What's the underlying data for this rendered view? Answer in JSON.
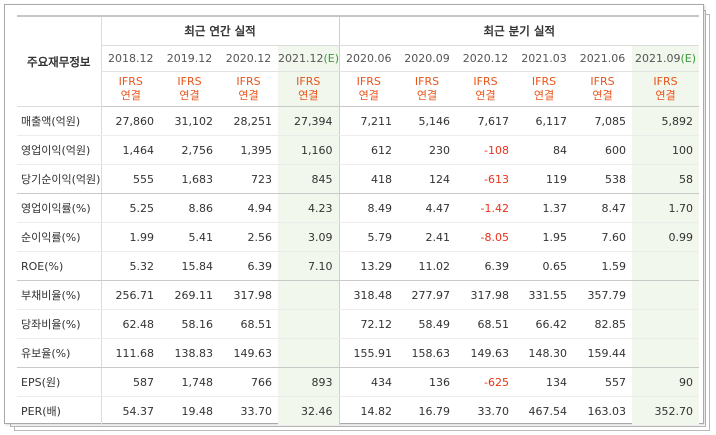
{
  "table": {
    "row_header_label": "주요재무정보",
    "groups": [
      {
        "label": "최근 연간 실적"
      },
      {
        "label": "최근 분기 실적"
      }
    ],
    "columns": [
      {
        "period": "2018.12",
        "suffix": "",
        "accounting": [
          "IFRS",
          "연결"
        ],
        "estimate": false
      },
      {
        "period": "2019.12",
        "suffix": "",
        "accounting": [
          "IFRS",
          "연결"
        ],
        "estimate": false
      },
      {
        "period": "2020.12",
        "suffix": "",
        "accounting": [
          "IFRS",
          "연결"
        ],
        "estimate": false
      },
      {
        "period": "2021.12",
        "suffix": "(E)",
        "accounting": [
          "IFRS",
          "연결"
        ],
        "estimate": true
      },
      {
        "period": "2020.06",
        "suffix": "",
        "accounting": [
          "IFRS",
          "연결"
        ],
        "estimate": false
      },
      {
        "period": "2020.09",
        "suffix": "",
        "accounting": [
          "IFRS",
          "연결"
        ],
        "estimate": false
      },
      {
        "period": "2020.12",
        "suffix": "",
        "accounting": [
          "IFRS",
          "연결"
        ],
        "estimate": false
      },
      {
        "period": "2021.03",
        "suffix": "",
        "accounting": [
          "IFRS",
          "연결"
        ],
        "estimate": false
      },
      {
        "period": "2021.06",
        "suffix": "",
        "accounting": [
          "IFRS",
          "연결"
        ],
        "estimate": false
      },
      {
        "period": "2021.09",
        "suffix": "(E)",
        "accounting": [
          "IFRS",
          "연결"
        ],
        "estimate": true
      }
    ],
    "rows": [
      {
        "label": "매출액(억원)",
        "values": [
          "27,860",
          "31,102",
          "28,251",
          "27,394",
          "7,211",
          "5,146",
          "7,617",
          "6,117",
          "7,085",
          "5,892"
        ]
      },
      {
        "label": "영업이익(억원)",
        "values": [
          "1,464",
          "2,756",
          "1,395",
          "1,160",
          "612",
          "230",
          "-108",
          "84",
          "600",
          "100"
        ]
      },
      {
        "label": "당기순이익(억원)",
        "values": [
          "555",
          "1,683",
          "723",
          "845",
          "418",
          "124",
          "-613",
          "119",
          "538",
          "58"
        ],
        "group_end": true
      },
      {
        "label": "영업이익률(%)",
        "values": [
          "5.25",
          "8.86",
          "4.94",
          "4.23",
          "8.49",
          "4.47",
          "-1.42",
          "1.37",
          "8.47",
          "1.70"
        ]
      },
      {
        "label": "순이익률(%)",
        "values": [
          "1.99",
          "5.41",
          "2.56",
          "3.09",
          "5.79",
          "2.41",
          "-8.05",
          "1.95",
          "7.60",
          "0.99"
        ]
      },
      {
        "label": "ROE(%)",
        "values": [
          "5.32",
          "15.84",
          "6.39",
          "7.10",
          "13.29",
          "11.02",
          "6.39",
          "0.65",
          "1.59",
          ""
        ],
        "group_end": true
      },
      {
        "label": "부채비율(%)",
        "values": [
          "256.71",
          "269.11",
          "317.98",
          "",
          "318.48",
          "277.97",
          "317.98",
          "331.55",
          "357.79",
          ""
        ]
      },
      {
        "label": "당좌비율(%)",
        "values": [
          "62.48",
          "58.16",
          "68.51",
          "",
          "72.12",
          "58.49",
          "68.51",
          "66.42",
          "82.85",
          ""
        ]
      },
      {
        "label": "유보율(%)",
        "values": [
          "111.68",
          "138.83",
          "149.63",
          "",
          "155.91",
          "158.63",
          "149.63",
          "148.30",
          "159.44",
          ""
        ],
        "group_end": true
      },
      {
        "label": "EPS(원)",
        "values": [
          "587",
          "1,748",
          "766",
          "893",
          "434",
          "136",
          "-625",
          "134",
          "557",
          "90"
        ]
      },
      {
        "label": "PER(배)",
        "values": [
          "54.37",
          "19.48",
          "33.70",
          "32.46",
          "14.82",
          "16.79",
          "33.70",
          "467.54",
          "163.03",
          "352.70"
        ]
      }
    ],
    "colors": {
      "negative": "#e8321a",
      "ifrs": "#e8541a",
      "estimate_background": "#f1f7ec",
      "estimate_marker": "#3c9a3c"
    }
  }
}
